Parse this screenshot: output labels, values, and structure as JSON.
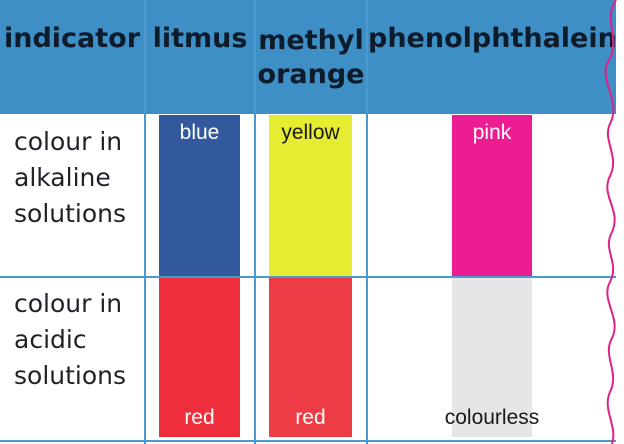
{
  "header": {
    "col_indicator": "indicator",
    "col_litmus": "litmus",
    "col_methyl_line1": "methyl",
    "col_methyl_line2": "orange",
    "col_phenol": "phenolphthalein"
  },
  "rows": {
    "alkaline": {
      "line1": "colour in",
      "line2": "alkaline",
      "line3": "solutions"
    },
    "acidic": {
      "line1": "colour in",
      "line2": "acidic",
      "line3": "solutions"
    }
  },
  "swatches": {
    "litmus_alkaline": {
      "label": "blue",
      "color": "#33599d"
    },
    "methyl_alkaline": {
      "label": "yellow",
      "color": "#e6ec31"
    },
    "phenol_alkaline": {
      "label": "pink",
      "color": "#ec1c93"
    },
    "litmus_acidic": {
      "label": "red",
      "color": "#ee2d3d"
    },
    "methyl_acidic": {
      "label": "red",
      "color": "#ee3c46"
    },
    "phenol_acidic": {
      "label": "colourless",
      "color": "#e6e6e6"
    }
  },
  "colors": {
    "header_bg": "#3e8fc6",
    "grid_line": "#4a9ad0",
    "squiggle": "#e0218a"
  }
}
